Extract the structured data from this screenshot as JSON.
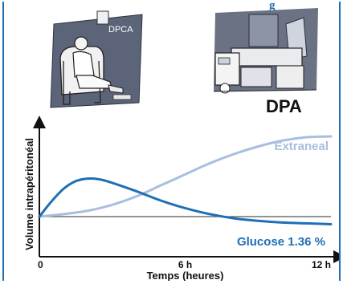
{
  "header_fragment": "g",
  "illustrations": {
    "dpca": {
      "label": "DPCA",
      "icon": "person-in-armchair-icon"
    },
    "dpa": {
      "label": "DPA",
      "icon": "bedside-machine-icon"
    }
  },
  "colors": {
    "extraneal": "#a9bedf",
    "glucose": "#1f6fb5",
    "baseline": "#555555",
    "axis": "#111111",
    "frame": "#1f6fb5"
  },
  "chart_data": {
    "type": "line",
    "title": "",
    "xlabel": "Temps (heures)",
    "ylabel": "Volume intrapéritonéal",
    "x_ticks": [
      {
        "value": 0,
        "label": "0"
      },
      {
        "value": 6,
        "label": "6 h"
      },
      {
        "value": 12,
        "label": "12 h"
      }
    ],
    "xlim": [
      0,
      12
    ],
    "ylim": [
      -10,
      100
    ],
    "grid": false,
    "series": [
      {
        "name": "Extraneal",
        "x": [
          0,
          1,
          2,
          3,
          4,
          5,
          6,
          7,
          8,
          9,
          10,
          11,
          12
        ],
        "y": [
          0,
          3,
          7,
          14,
          24,
          37,
          50,
          63,
          74,
          83,
          90,
          94,
          95
        ]
      },
      {
        "name": "Glucose 1.36 %",
        "x": [
          0,
          0.5,
          1,
          1.5,
          2,
          2.5,
          3,
          4,
          5,
          6,
          7,
          8,
          9,
          10,
          11,
          12
        ],
        "y": [
          0,
          18,
          33,
          42,
          45,
          44,
          40,
          30,
          19,
          10,
          3,
          -2,
          -5,
          -7,
          -8,
          -9
        ]
      }
    ],
    "baseline": 0
  }
}
